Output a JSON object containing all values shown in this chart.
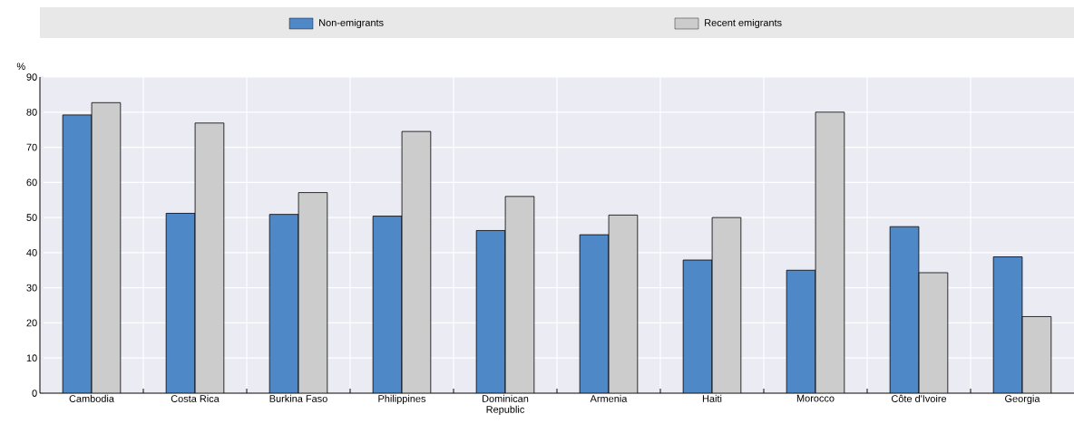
{
  "chart_data": {
    "type": "bar",
    "ylabel": "%",
    "categories": [
      "Cambodia",
      "Costa Rica",
      "Burkina Faso",
      "Philippines",
      "Dominican Republic",
      "Armenia",
      "Haiti",
      "Morocco",
      "Côte d'Ivoire",
      "Georgia"
    ],
    "series": [
      {
        "name": "Non-emigrants",
        "color": "#4e88c7",
        "values": [
          79.2,
          51.2,
          50.9,
          50.4,
          46.3,
          45.1,
          37.9,
          35.0,
          47.4,
          38.8
        ]
      },
      {
        "name": "Recent emigrants",
        "color": "#cccccc",
        "values": [
          82.7,
          76.9,
          57.1,
          74.5,
          56.0,
          50.7,
          50.0,
          80.0,
          34.3,
          21.8
        ]
      }
    ],
    "ylim": [
      0,
      90
    ],
    "yticks": [
      0,
      10,
      20,
      30,
      40,
      50,
      60,
      70,
      80,
      90
    ],
    "grid": true,
    "legend": "top"
  }
}
